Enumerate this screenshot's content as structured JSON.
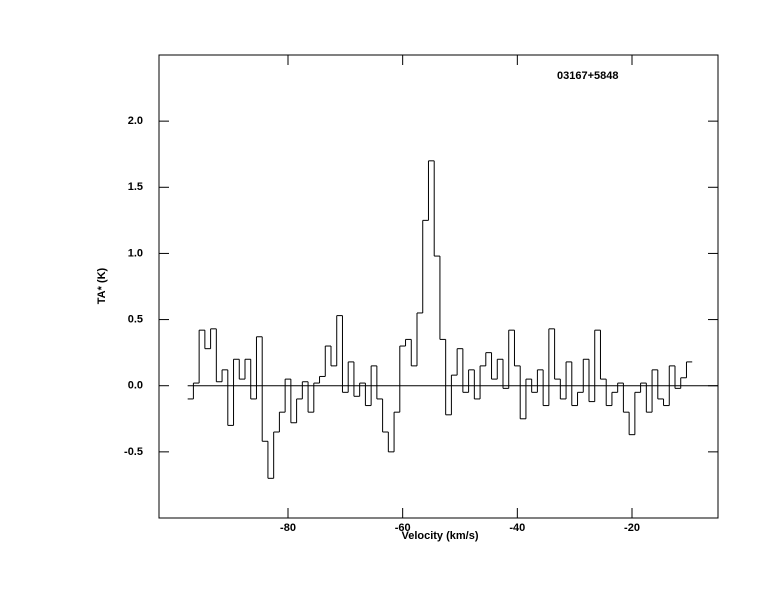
{
  "chart_data": {
    "type": "step",
    "title": "03167+5848",
    "x_label": "Velocity (km/s)",
    "y_label": "TA* (K)",
    "color": "#000000",
    "xlim": [
      -102.5,
      -5
    ],
    "ylim": [
      -1.0,
      2.5
    ],
    "xticks": [
      -80,
      -60,
      -40,
      -20
    ],
    "yticks": [
      -0.5,
      {
        "value": 0,
        "label": "0.0"
      },
      0.5,
      {
        "value": 1,
        "label": "1.0"
      },
      1.5,
      {
        "value": 2,
        "label": "2.0"
      }
    ],
    "x": [
      -97,
      -96,
      -95,
      -94,
      -93,
      -92,
      -91,
      -90,
      -89,
      -88,
      -87,
      -86,
      -85,
      -84,
      -83,
      -82,
      -81,
      -80,
      -79,
      -78,
      -77,
      -76,
      -75,
      -74,
      -73,
      -72,
      -71,
      -70,
      -69,
      -68,
      -67,
      -66,
      -65,
      -64,
      -63,
      -62,
      -61,
      -60,
      -59,
      -58,
      -57,
      -56,
      -55,
      -54,
      -53,
      -52,
      -51,
      -50,
      -49,
      -48,
      -47,
      -46,
      -45,
      -44,
      -43,
      -42,
      -41,
      -40,
      -39,
      -38,
      -37,
      -36,
      -35,
      -34,
      -33,
      -32,
      -31,
      -30,
      -29,
      -28,
      -27,
      -26,
      -25,
      -24,
      -23,
      -22,
      -21,
      -20,
      -19,
      -18,
      -17,
      -16,
      -15,
      -14,
      -13,
      -12,
      -11,
      -10
    ],
    "values": [
      -0.1,
      0.02,
      0.42,
      0.28,
      0.43,
      0.03,
      0.12,
      -0.3,
      0.2,
      0.05,
      0.2,
      -0.1,
      0.37,
      -0.42,
      -0.7,
      -0.35,
      -0.2,
      0.05,
      -0.28,
      -0.1,
      0.03,
      -0.2,
      0.02,
      0.07,
      0.3,
      0.15,
      0.53,
      -0.05,
      0.18,
      -0.08,
      0.02,
      -0.15,
      0.15,
      -0.1,
      -0.35,
      -0.5,
      -0.2,
      0.3,
      0.35,
      0.15,
      0.55,
      1.25,
      1.7,
      0.98,
      0.35,
      -0.22,
      0.08,
      0.28,
      -0.05,
      0.12,
      -0.1,
      0.15,
      0.25,
      0.05,
      0.2,
      -0.02,
      0.42,
      0.15,
      -0.25,
      0.05,
      -0.05,
      0.12,
      -0.15,
      0.43,
      0.05,
      -0.1,
      0.18,
      -0.15,
      -0.05,
      0.2,
      -0.12,
      0.42,
      0.05,
      -0.15,
      -0.05,
      0.02,
      -0.2,
      -0.37,
      -0.05,
      0.02,
      -0.2,
      0.12,
      -0.1,
      -0.15,
      0.15,
      -0.02,
      0.06,
      0.18
    ]
  }
}
